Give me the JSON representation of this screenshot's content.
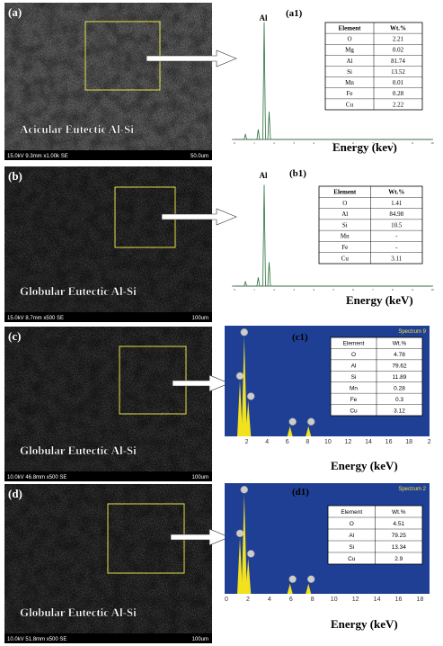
{
  "panels": [
    {
      "label": "(a)",
      "caption": "Acicular Eutectic Al-Si",
      "sem_info": "15.0kV 9.3mm x1.00k SE",
      "scale": "50.0um",
      "spectrum": {
        "label": "(a1)",
        "peak": "Al",
        "xlabel": "Energy (kev)",
        "ticks": [
          "0",
          "1",
          "2",
          "3",
          "4",
          "5",
          "6",
          "7",
          "8",
          "9",
          "10"
        ],
        "table": {
          "header": [
            "Element",
            "Wt.%"
          ],
          "rows": [
            [
              "O",
              "2.21"
            ],
            [
              "Mg",
              "0.02"
            ],
            [
              "Al",
              "81.74"
            ],
            [
              "Si",
              "13.52"
            ],
            [
              "Mn",
              "0.01"
            ],
            [
              "Fe",
              "0.28"
            ],
            [
              "Cu",
              "2.22"
            ]
          ]
        }
      }
    },
    {
      "label": "(b)",
      "caption": "Globular Eutectic Al-Si",
      "sem_info": "15.0kV 8.7mm x500 SE",
      "scale": "100um",
      "spectrum": {
        "label": "(b1)",
        "peak": "Al",
        "xlabel": "Energy (keV)",
        "ticks": [
          "0",
          "1",
          "2",
          "3",
          "4",
          "5",
          "6",
          "7",
          "8",
          "9",
          "10"
        ],
        "table": {
          "header": [
            "Element",
            "Wt.%"
          ],
          "rows": [
            [
              "O",
              "1.41"
            ],
            [
              "Al",
              "84.98"
            ],
            [
              "Si",
              "10.5"
            ],
            [
              "Mn",
              "-"
            ],
            [
              "Fe",
              "-"
            ],
            [
              "Cu",
              "3.11"
            ]
          ]
        }
      }
    },
    {
      "label": "(c)",
      "caption": "Globular Eutectic Al-Si",
      "sem_info": "10.0kV 46.8mm x500 SE",
      "scale": "100um",
      "spectrum": {
        "label": "(c1)",
        "title": "Spectrum 9",
        "xlabel": "Energy (keV)",
        "ticks": [
          "2",
          "4",
          "6",
          "8",
          "10",
          "12",
          "14",
          "16",
          "18",
          "2"
        ],
        "table": {
          "header": [
            "Element",
            "Wt.%"
          ],
          "rows": [
            [
              "O",
              "4.78"
            ],
            [
              "Al",
              "79.62"
            ],
            [
              "Si",
              "11.89"
            ],
            [
              "Mn",
              "0.28"
            ],
            [
              "Fe",
              "0.3"
            ],
            [
              "Cu",
              "3.12"
            ]
          ]
        }
      }
    },
    {
      "label": "(d)",
      "caption": "Globular Eutectic Al-Si",
      "sem_info": "10.0kV 51.8mm x500 SE",
      "scale": "100um",
      "spectrum": {
        "label": "(d1)",
        "title": "Spectrum 2",
        "xlabel": "Energy (keV)",
        "ticks": [
          "0",
          "2",
          "4",
          "6",
          "8",
          "10",
          "12",
          "14",
          "16",
          "18"
        ],
        "table": {
          "header": [
            "Element",
            "Wt.%"
          ],
          "rows": [
            [
              "O",
              "4.51"
            ],
            [
              "Al",
              "79.25"
            ],
            [
              "Si",
              "13.34"
            ],
            [
              "Cu",
              "2.9"
            ]
          ]
        }
      }
    }
  ]
}
